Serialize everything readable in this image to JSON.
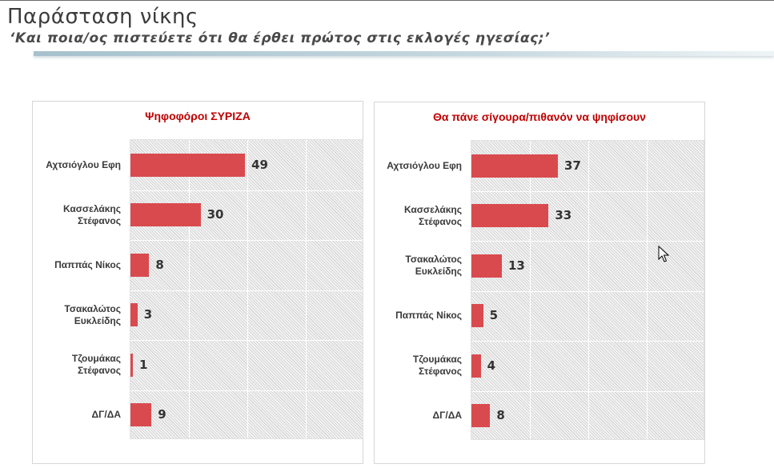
{
  "header": {
    "title": "Παράσταση νίκης",
    "subtitle": "‘Και ποια/ος πιστεύετε ότι θα έρθει πρώτος στις εκλογές ηγεσίας;’"
  },
  "colors": {
    "bar": "#d94a4f",
    "panel_title": "#c00000"
  },
  "chart_data": [
    {
      "type": "bar",
      "orientation": "horizontal",
      "title": "Ψηφοφόροι ΣΥΡΙΖΑ",
      "categories": [
        [
          "Αχτσιόγλου Εφη"
        ],
        [
          "Κασσελάκης",
          "Στέφανος"
        ],
        [
          "Παππάς Νίκος"
        ],
        [
          "Τσακαλώτος",
          "Ευκλείδης"
        ],
        [
          "Τζουμάκας",
          "Στέφανος"
        ],
        [
          "ΔΓ/ΔΑ"
        ]
      ],
      "values": [
        49,
        30,
        8,
        3,
        1,
        9
      ],
      "value_labels": [
        "49",
        "30",
        "8",
        "3",
        "1",
        "9"
      ],
      "xlim": [
        0,
        100
      ],
      "grid": true
    },
    {
      "type": "bar",
      "orientation": "horizontal",
      "title": "Θα πάνε σίγουρα/πιθανόν να ψηφίσουν",
      "categories": [
        [
          "Αχτσιόγλου Εφη"
        ],
        [
          "Κασσελάκης",
          "Στέφανος"
        ],
        [
          "Τσακαλώτος",
          "Ευκλείδης"
        ],
        [
          "Παππάς Νίκος"
        ],
        [
          "Τζουμάκας",
          "Στέφανος"
        ],
        [
          "ΔΓ/ΔΑ"
        ]
      ],
      "values": [
        37,
        33,
        13,
        5,
        4,
        8
      ],
      "value_labels": [
        "37",
        "33",
        "13",
        "5",
        "4",
        "8"
      ],
      "xlim": [
        0,
        100
      ],
      "grid": true
    }
  ]
}
